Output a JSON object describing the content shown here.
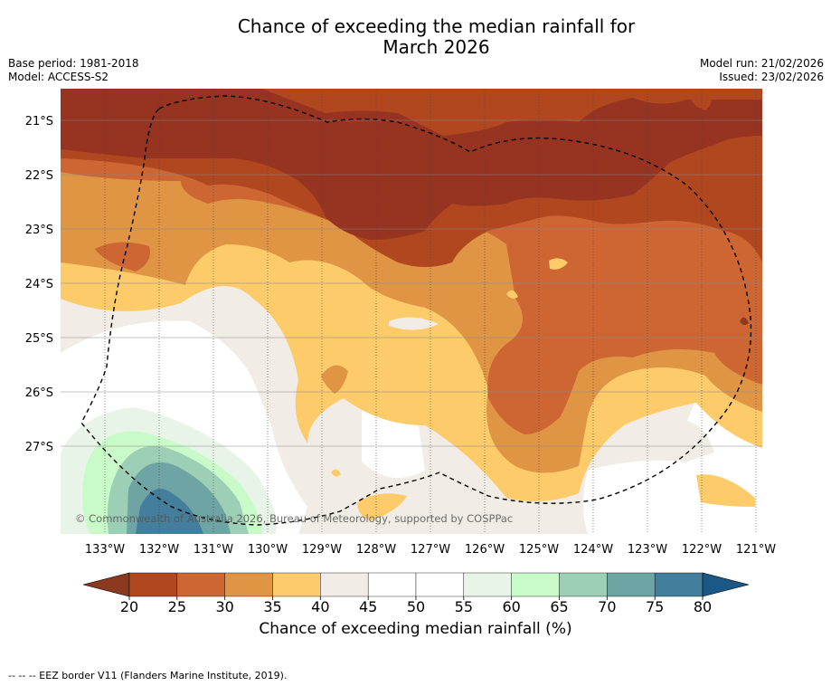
{
  "header": {
    "title_line1": "Chance of exceeding the median rainfall for",
    "title_line2": "March 2026",
    "base_period": "Base period: 1981-2018",
    "model": "Model: ACCESS-S2",
    "model_run": "Model run: 21/02/2026",
    "issued": "Issued: 23/02/2026"
  },
  "map": {
    "copyright": "© Commonwealth of Australia 2026, Bureau of Meteorology, supported by COSPPac",
    "lon_labels": [
      "133°W",
      "132°W",
      "131°W",
      "130°W",
      "129°W",
      "128°W",
      "127°W",
      "126°W",
      "125°W",
      "124°W",
      "123°W",
      "122°W",
      "121°W"
    ],
    "lat_labels": [
      "21°S",
      "22°S",
      "23°S",
      "24°S",
      "25°S",
      "26°S",
      "27°S"
    ]
  },
  "colorbar": {
    "ticks": [
      "20",
      "25",
      "30",
      "35",
      "40",
      "45",
      "50",
      "55",
      "60",
      "65",
      "70",
      "75",
      "80"
    ],
    "label": "Chance of exceeding median rainfall (%)",
    "colors": {
      "under": "#8b3a1f",
      "b20_25": "#b0471f",
      "b25_30": "#cd6632",
      "b30_35": "#e09545",
      "b35_40": "#fdcb6a",
      "b40_45": "#f1ece6",
      "b45_50": "#ffffff",
      "b50_55": "#ffffff",
      "b55_60": "#e9f4e8",
      "b60_65": "#c8fbc8",
      "b65_70": "#9ccfb6",
      "b70_75": "#6fa4a4",
      "b75_80": "#437f9c",
      "over": "#1b5886",
      "deep": "#973421"
    }
  },
  "footer": {
    "legend": "--  --  -- EEZ border V11 (Flanders Marine Institute, 2019)."
  }
}
